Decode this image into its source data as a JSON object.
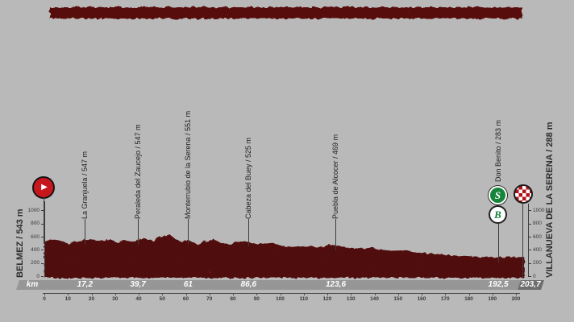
{
  "palette": {
    "background": "#b9b9b9",
    "profile_red": "#c8161d",
    "speckle_dark": "#400000",
    "ink": "#3c3c3c",
    "km_bar": "#969696",
    "km_bar_end": "#6e6e6e",
    "badge_green": "#17843b"
  },
  "header_band": {
    "color": "#c8161d"
  },
  "start": {
    "label": "BELMEZ / 543 m",
    "icon": "play"
  },
  "finish": {
    "label": "VILLANUEVA DE LA SERENA / 288 m",
    "sprint_badge": "S",
    "bonus_badge": "B"
  },
  "waypoints": [
    {
      "label": "La Granjuela / 547 m",
      "name": "La Granjuela",
      "km": 17.2,
      "elevation_m": 547,
      "badges": false
    },
    {
      "label": "Peraleda del Zaucejo / 547 m",
      "name": "Peraleda del Zaucejo",
      "km": 39.7,
      "elevation_m": 547,
      "badges": false
    },
    {
      "label": "Monterrubio de la Serena / 551 m",
      "name": "Monterrubio de la Serena",
      "km": 61,
      "elevation_m": 551,
      "badges": false
    },
    {
      "label": "Cabeza del Buey / 525 m",
      "name": "Cabeza del Buey",
      "km": 86.6,
      "elevation_m": 525,
      "badges": false
    },
    {
      "label": "Puebla de Alcocer / 469 m",
      "name": "Puebla de Alcocer",
      "km": 123.6,
      "elevation_m": 469,
      "badges": false
    },
    {
      "label": "Don Benito / 283 m",
      "name": "Don Benito",
      "km": 192.5,
      "elevation_m": 283,
      "badges": true
    }
  ],
  "y_axis": {
    "unit": "m",
    "ticks": [
      1000,
      800,
      600,
      400,
      200,
      0
    ]
  },
  "km_bar": {
    "unit_label": "km",
    "marks": [
      {
        "text": "17,2",
        "km": 17.2
      },
      {
        "text": "39,7",
        "km": 39.7
      },
      {
        "text": "61",
        "km": 61
      },
      {
        "text": "86,6",
        "km": 86.6
      },
      {
        "text": "123,6",
        "km": 123.6
      },
      {
        "text": "192,5",
        "km": 192.5
      }
    ],
    "final": {
      "text": "203,7",
      "km": 203.7
    }
  },
  "ruler": {
    "min": 0,
    "max": 200,
    "step": 10
  },
  "chart_data": {
    "type": "area",
    "title": "",
    "xlabel": "km",
    "ylabel": "m",
    "x_range": [
      0,
      203.7
    ],
    "y_range": [
      0,
      1000
    ],
    "y_ticks": [
      0,
      200,
      400,
      600,
      800,
      1000
    ],
    "start": {
      "name": "Belmez",
      "elevation_m": 543,
      "km": 0
    },
    "finish": {
      "name": "Villanueva de la Serena",
      "elevation_m": 288,
      "km": 203.7
    },
    "annotations": [
      {
        "name": "La Granjuela",
        "km": 17.2,
        "elevation_m": 547
      },
      {
        "name": "Peraleda del Zaucejo",
        "km": 39.7,
        "elevation_m": 547
      },
      {
        "name": "Monterrubio de la Serena",
        "km": 61,
        "elevation_m": 551
      },
      {
        "name": "Cabeza del Buey",
        "km": 86.6,
        "elevation_m": 525
      },
      {
        "name": "Puebla de Alcocer",
        "km": 123.6,
        "elevation_m": 469
      },
      {
        "name": "Don Benito",
        "km": 192.5,
        "elevation_m": 283,
        "icons": [
          "sprint",
          "bonus"
        ]
      }
    ],
    "profile": [
      [
        0,
        543
      ],
      [
        3.4,
        560
      ],
      [
        6.8,
        540
      ],
      [
        10,
        500
      ],
      [
        13.7,
        520
      ],
      [
        17.2,
        547
      ],
      [
        20.5,
        560
      ],
      [
        24,
        530
      ],
      [
        27.3,
        555
      ],
      [
        30.8,
        520
      ],
      [
        34.2,
        545
      ],
      [
        37.6,
        520
      ],
      [
        39.7,
        547
      ],
      [
        42.7,
        570
      ],
      [
        46.1,
        540
      ],
      [
        49.6,
        600
      ],
      [
        53,
        640
      ],
      [
        55.7,
        560
      ],
      [
        58.4,
        520
      ],
      [
        61,
        551
      ],
      [
        65,
        480
      ],
      [
        68.3,
        530
      ],
      [
        71.8,
        560
      ],
      [
        75.2,
        500
      ],
      [
        78.6,
        490
      ],
      [
        82,
        520
      ],
      [
        86.6,
        525
      ],
      [
        90.6,
        480
      ],
      [
        95.7,
        510
      ],
      [
        100.8,
        460
      ],
      [
        106,
        440
      ],
      [
        111.1,
        460
      ],
      [
        116.2,
        430
      ],
      [
        119.6,
        470
      ],
      [
        123.6,
        469
      ],
      [
        128.2,
        440
      ],
      [
        133.3,
        420
      ],
      [
        138.4,
        430
      ],
      [
        143.5,
        400
      ],
      [
        148.7,
        380
      ],
      [
        153.8,
        390
      ],
      [
        158.9,
        360
      ],
      [
        164,
        340
      ],
      [
        169.1,
        330
      ],
      [
        174.3,
        310
      ],
      [
        179.4,
        300
      ],
      [
        184.5,
        290
      ],
      [
        189.6,
        285
      ],
      [
        192.5,
        283
      ],
      [
        196.3,
        300
      ],
      [
        199,
        290
      ],
      [
        203.7,
        288
      ]
    ]
  }
}
